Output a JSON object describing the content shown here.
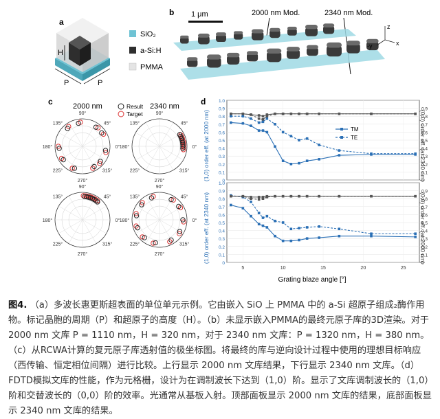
{
  "panels": {
    "a": {
      "letter": "a",
      "legend": [
        {
          "label": "SiO₂",
          "color": "#6fc3d4"
        },
        {
          "label": "a-Si:H",
          "color": "#2e2e2e"
        },
        {
          "label": "PMMA",
          "color": "#e4e4e4"
        }
      ],
      "h_label": "H",
      "p_label": "P"
    },
    "b": {
      "letter": "b",
      "scale": "1 μm",
      "label_2000": "2000 nm Mod.",
      "label_2340": "2340 nm Mod.",
      "axes": {
        "z": "z",
        "y": "-y",
        "x": "x"
      }
    },
    "c": {
      "letter": "c",
      "col1": "2000 nm",
      "col2": "2340 nm",
      "legend_result": "Result",
      "legend_target": "Target",
      "angles": {
        "a90": "90°",
        "a45": "45°",
        "a0": "0°",
        "a135": "135°",
        "a180": "180°",
        "a225": "225°",
        "a270": "270°",
        "a315": "315°"
      }
    },
    "d": {
      "letter": "d",
      "xlabel": "Grating blaze angle [°]",
      "ylabel_left_top": "(1,0) order eff. (at 2000 nm)",
      "ylabel_right_top": "(0,0) order eff. (at 2340 nm)",
      "ylabel_left_bottom": "(1,0) order eff. (at 2340 nm)",
      "ylabel_right_bottom": "(0,0) order eff. (at 2000 nm)",
      "legend": [
        "TM",
        "TE"
      ],
      "xticks": [
        "5",
        "10",
        "15",
        "20",
        "25"
      ],
      "yticks_left": [
        "0",
        "0.1",
        "0.2",
        "0.3",
        "0.4",
        "0.5",
        "0.6",
        "0.7",
        "0.8",
        "0.9",
        "1.0"
      ],
      "yticks_right": [
        "0",
        "0.1",
        "0.2",
        "0.3",
        "0.4",
        "0.5",
        "0.6",
        "0.7",
        "0.8",
        "0.9"
      ]
    }
  },
  "chart_data": [
    {
      "type": "line",
      "title": "",
      "xlabel": "Grating blaze angle [°]",
      "ylabel": "(1,0) order eff. (at 2000 nm)",
      "ylabel_right": "(0,0) order eff. (at 2340 nm)",
      "xlim": [
        3,
        27
      ],
      "ylim": [
        0,
        1.0
      ],
      "x": [
        3.5,
        5,
        6,
        7,
        7.5,
        8,
        9,
        10,
        11,
        12,
        13,
        14.5,
        17,
        21,
        26.5
      ],
      "series": [
        {
          "name": "TM",
          "axis": "left",
          "values": [
            0.72,
            0.71,
            0.68,
            0.62,
            0.62,
            0.6,
            0.42,
            0.24,
            0.2,
            0.21,
            0.24,
            0.26,
            0.31,
            0.32,
            0.32
          ]
        },
        {
          "name": "TE",
          "axis": "left",
          "values": [
            0.8,
            0.8,
            0.77,
            0.72,
            0.73,
            0.77,
            0.7,
            0.6,
            0.55,
            0.5,
            0.52,
            0.44,
            0.37,
            0.33,
            0.33
          ]
        },
        {
          "axis": "right",
          "values": [
            0.83,
            0.83,
            0.82,
            0.81,
            0.8,
            0.82,
            0.83,
            0.83,
            0.83,
            0.83,
            0.83,
            0.83,
            0.83,
            0.83,
            0.83
          ]
        },
        {
          "axis": "right",
          "values": [
            0.83,
            0.83,
            0.82,
            0.77,
            0.76,
            0.8,
            0.83,
            0.83,
            0.83,
            0.83,
            0.83,
            0.83,
            0.83,
            0.83,
            0.83
          ]
        }
      ]
    },
    {
      "type": "line",
      "title": "",
      "xlabel": "Grating blaze angle [°]",
      "ylabel": "(1,0) order eff. (at 2340 nm)",
      "ylabel_right": "(0,0) order eff. (at 2000 nm)",
      "xlim": [
        3,
        27
      ],
      "ylim": [
        0,
        1.0
      ],
      "x": [
        3.5,
        5,
        6,
        7,
        7.5,
        8,
        9,
        10,
        11,
        12,
        13,
        14.5,
        17,
        21,
        26.5
      ],
      "series": [
        {
          "name": "TM",
          "axis": "left",
          "values": [
            0.72,
            0.68,
            0.58,
            0.48,
            0.46,
            0.44,
            0.33,
            0.27,
            0.27,
            0.28,
            0.3,
            0.31,
            0.33,
            0.33,
            0.32
          ]
        },
        {
          "name": "TE",
          "axis": "left",
          "values": [
            0.84,
            0.82,
            0.76,
            0.62,
            0.56,
            0.58,
            0.52,
            0.5,
            0.42,
            0.43,
            0.44,
            0.45,
            0.42,
            0.36,
            0.36
          ]
        },
        {
          "axis": "right",
          "values": [
            0.83,
            0.83,
            0.82,
            0.82,
            0.82,
            0.83,
            0.83,
            0.83,
            0.83,
            0.83,
            0.83,
            0.83,
            0.83,
            0.83,
            0.83
          ]
        },
        {
          "axis": "right",
          "values": [
            0.83,
            0.83,
            0.8,
            0.79,
            0.8,
            0.82,
            0.83,
            0.83,
            0.83,
            0.83,
            0.83,
            0.83,
            0.83,
            0.83,
            0.83
          ]
        }
      ]
    }
  ],
  "polar_data": [
    {
      "name": "2000 nm top",
      "result_angles_deg": [
        130,
        100,
        55,
        35,
        350,
        320,
        300,
        250,
        215,
        185
      ],
      "target_angles_deg": [
        125,
        95,
        50,
        30,
        345,
        315,
        295,
        245,
        210,
        180
      ]
    },
    {
      "name": "2340 nm top",
      "result_angles_deg": [
        20,
        15,
        10,
        5,
        0,
        355,
        25,
        30
      ],
      "target_angles_deg": [
        18,
        12,
        8,
        3,
        358,
        352,
        22,
        28
      ]
    },
    {
      "name": "2000 nm bottom",
      "result_angles_deg": [
        85,
        80,
        75,
        70,
        65,
        60,
        55,
        50
      ],
      "target_angles_deg": [
        88,
        82,
        77,
        72,
        68,
        63,
        58,
        52
      ]
    },
    {
      "name": "2340 nm bottom",
      "result_angles_deg": [
        140,
        110,
        60,
        35,
        0,
        330,
        300,
        260,
        230,
        200,
        170
      ],
      "target_angles_deg": [
        135,
        105,
        55,
        30,
        355,
        325,
        295,
        255,
        225,
        195,
        165
      ]
    }
  ],
  "caption": {
    "label": "图4.",
    "text": "（a）多波长惠更斯超表面的单位单元示例。它由嵌入 SiO 上 PMMA 中的 a-Si 超原子组成₂酶作用物。标记晶胞的周期（P）和超原子的高度（H）。（b）未显示嵌入PMMA的最终元原子库的3D渲染。对于 2000 nm 文库 P = 1110 nm，H = 320 nm，对于 2340 nm 文库：P = 1320 nm，H = 380 nm。（c）从RCWA计算的复元原子库透射值的极坐标图。将最终的库与逆向设计过程中使用的理想目标响应（西传输、恒定相位间隔）进行比较。上行显示 2000 nm 文库结果，下行显示 2340 nm 文库。（d）FDTD模拟文库的性能，作为元格栅，设计为在调制波长下达到（1,0）阶。显示了文库调制波长的（1,0）阶和交替波长的（0,0）阶的效率。光通常从基板入射。顶部面板显示 2000 nm 文库的结果，底部面板显示 2340 nm 文库的结果。"
  }
}
